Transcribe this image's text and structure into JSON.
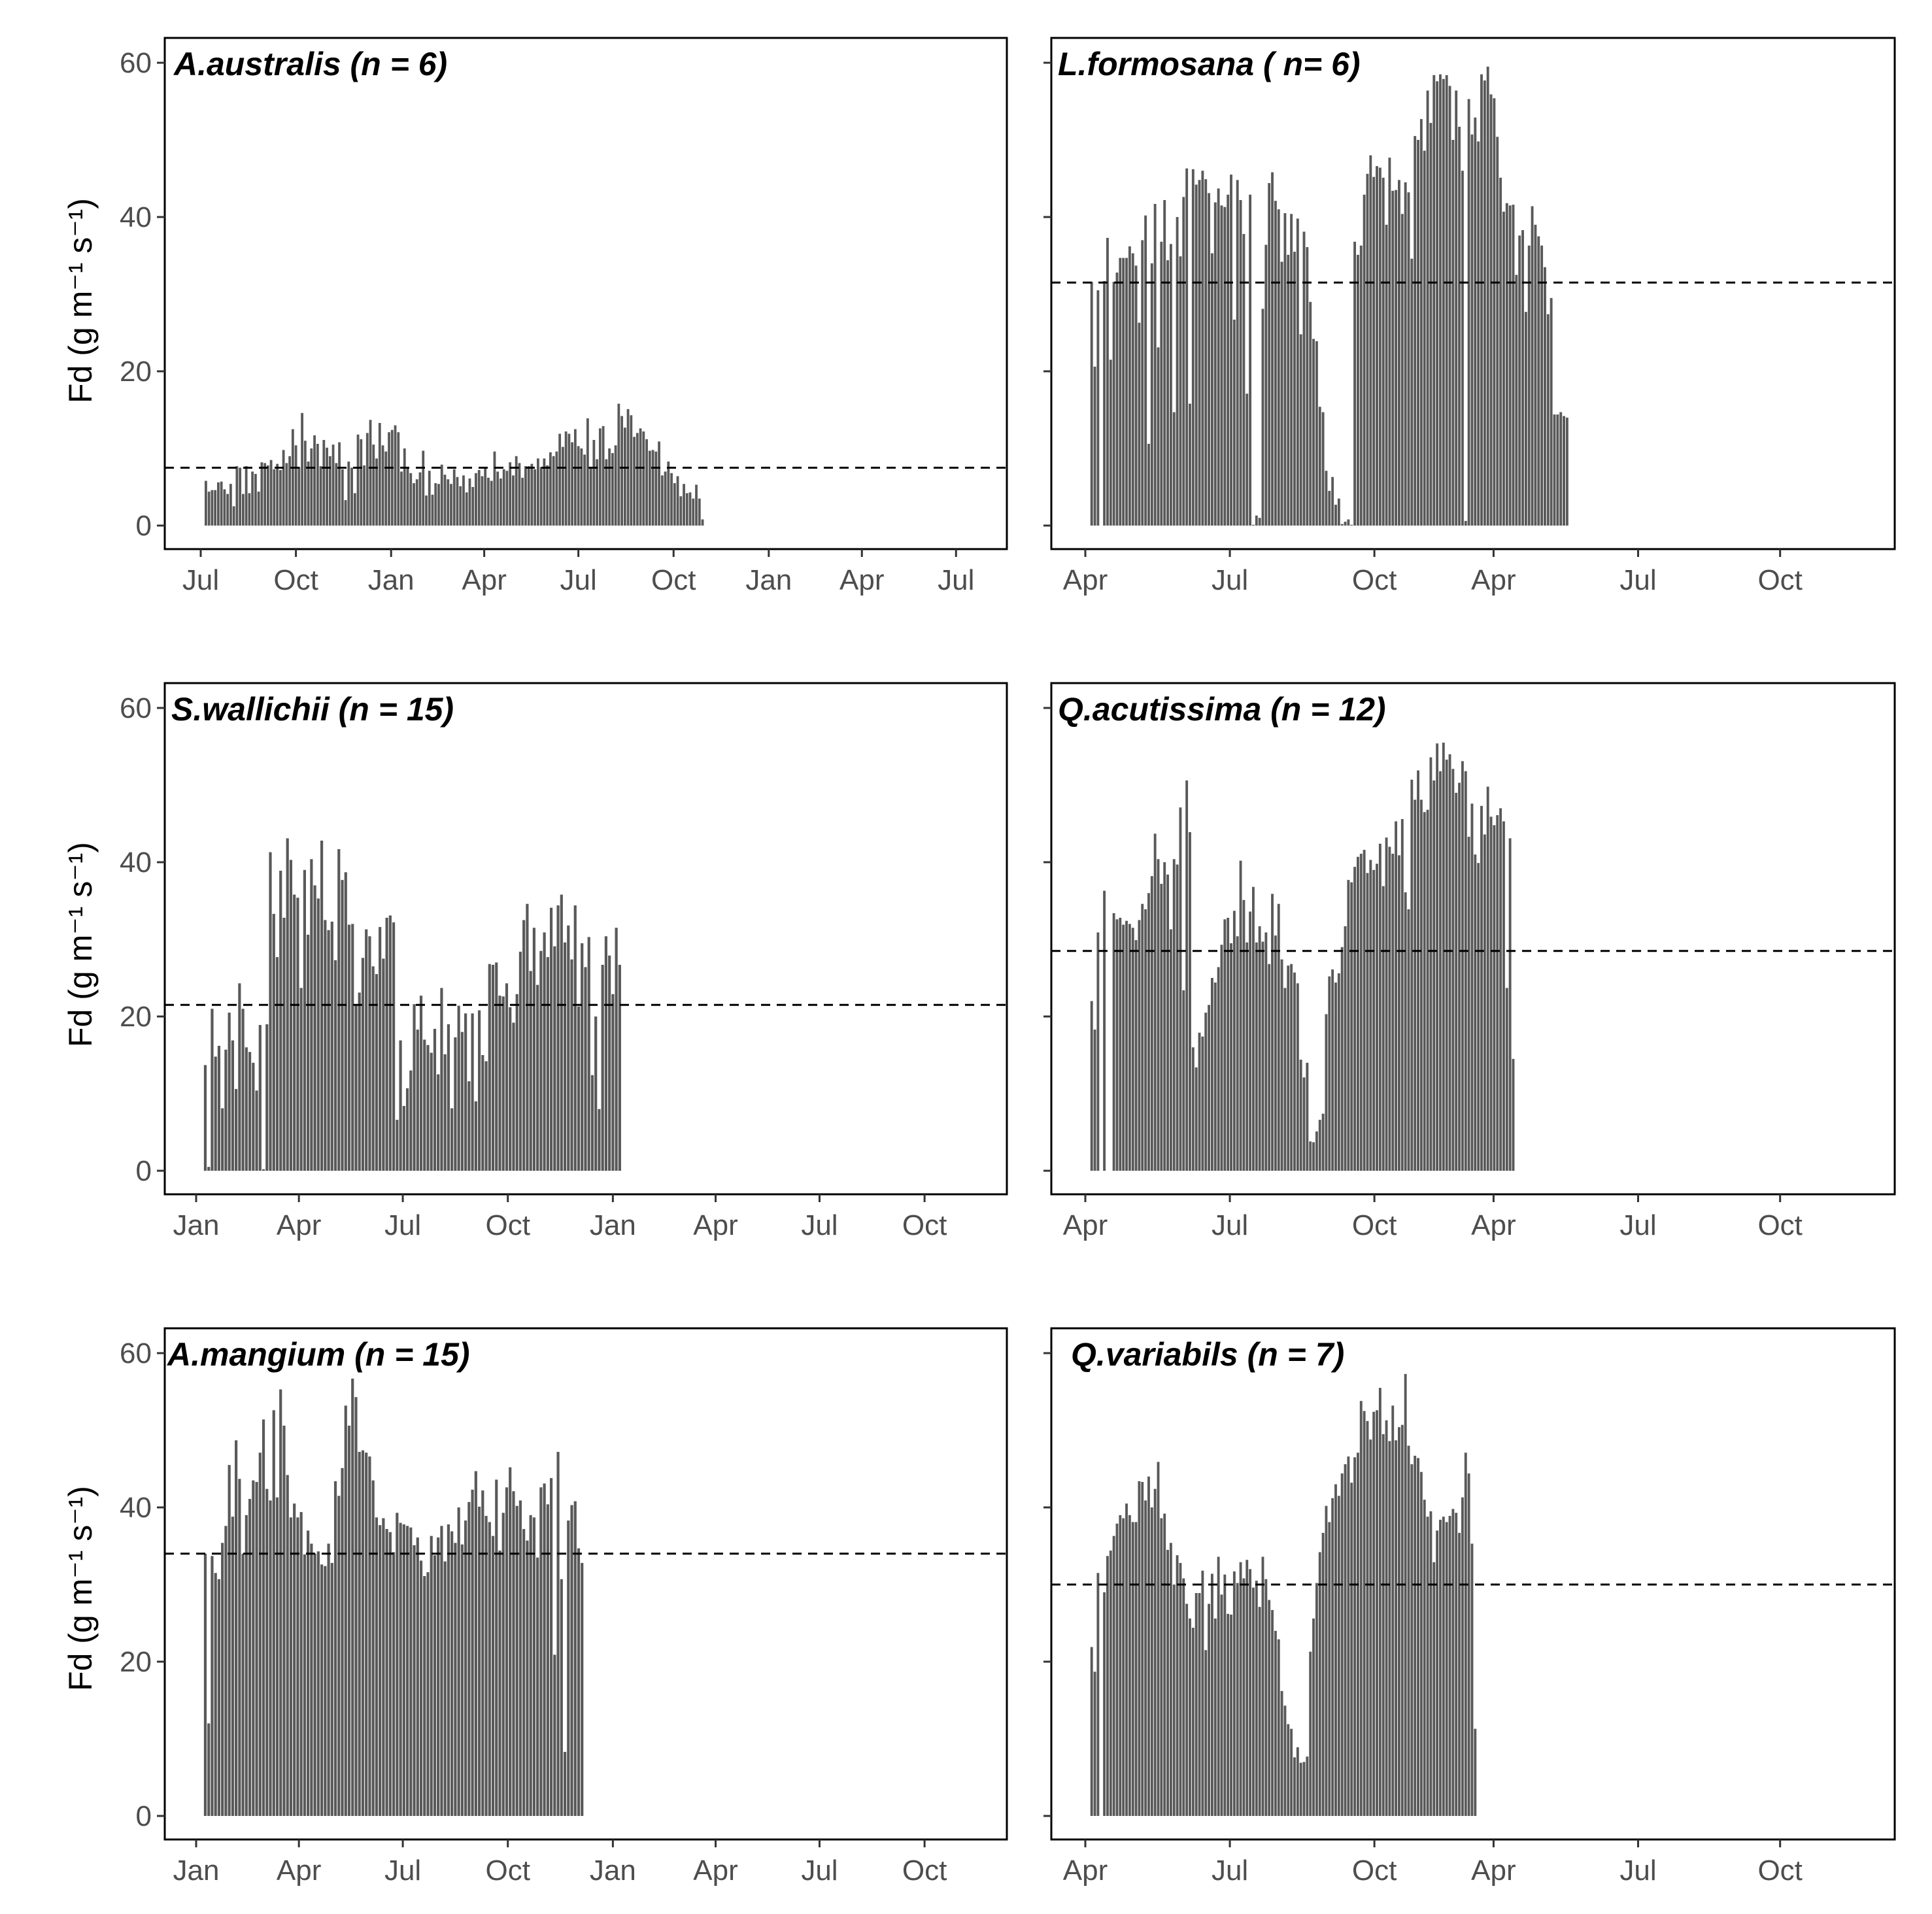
{
  "figure": {
    "y_axis_label": "Fd (g m⁻¹ s⁻¹)",
    "bar_color": "#595959"
  },
  "chart_data": [
    {
      "type": "bar",
      "title": "A.australis (n = 6)",
      "ylabel": "Fd (g m⁻¹ s⁻¹)",
      "xlabel": "",
      "ylim": [
        0,
        60
      ],
      "yticks": [
        0,
        20,
        40,
        60
      ],
      "show_y_tick_labels": true,
      "xlim_days": [
        0,
        745
      ],
      "x_tick_labels": [
        "Jul",
        "Oct",
        "Jan",
        "Apr",
        "Jul",
        "Oct",
        "Jan",
        "Apr",
        "Jul"
      ],
      "x_tick_days": [
        0,
        92,
        184,
        274,
        365,
        457,
        549,
        639,
        730
      ],
      "mean_line": 7.5,
      "bar_start_day": 5,
      "bar_spacing_days": 3,
      "values": [
        5.8,
        4.4,
        4.6,
        4.6,
        5.6,
        5.7,
        4.7,
        4.1,
        5.4,
        2.5,
        7.7,
        7.5,
        4.1,
        7.7,
        4.2,
        7.0,
        6.7,
        4.4,
        8.2,
        8.1,
        7.8,
        8.5,
        7.3,
        8.0,
        7.2,
        9.8,
        8.1,
        9.0,
        12.5,
        10.4,
        7.6,
        14.6,
        11.0,
        8.3,
        10.0,
        11.7,
        10.6,
        7.7,
        11.1,
        10.1,
        9.0,
        10.5,
        8.1,
        10.8,
        7.3,
        3.3,
        8.3,
        7.5,
        4.2,
        11.8,
        11.2,
        7.8,
        12.0,
        13.7,
        10.5,
        8.7,
        13.3,
        10.4,
        9.6,
        12.1,
        12.4,
        13.0,
        12.1,
        7.0,
        10.0,
        7.5,
        6.8,
        5.5,
        6.0,
        6.9,
        9.7,
        3.9,
        7.1,
        4.0,
        5.5,
        5.4,
        7.9,
        6.6,
        6.0,
        5.4,
        7.3,
        6.3,
        5.1,
        6.5,
        4.3,
        6.1,
        5.0,
        6.8,
        7.2,
        6.4,
        7.6,
        6.2,
        5.8,
        9.6,
        7.0,
        6.1,
        7.3,
        7.1,
        8.2,
        6.5,
        9.0,
        8.1,
        6.2,
        7.7,
        7.7,
        8.0,
        7.3,
        8.7,
        7.6,
        8.7,
        7.8,
        9.5,
        9.0,
        9.6,
        11.9,
        10.2,
        12.2,
        11.9,
        10.8,
        12.5,
        10.3,
        10.0,
        9.2,
        13.9,
        7.6,
        11.1,
        8.6,
        12.6,
        12.9,
        8.6,
        10.0,
        9.4,
        10.4,
        15.8,
        14.2,
        12.7,
        15.1,
        14.3,
        11.5,
        12.0,
        12.6,
        12.2,
        11.2,
        9.7,
        9.8,
        9.6,
        10.9,
        6.5,
        7.0,
        8.3,
        6.8,
        5.5,
        6.4,
        3.8,
        5.4,
        4.2,
        4.3,
        3.5,
        5.3,
        3.5,
        0.8
      ]
    },
    {
      "type": "bar",
      "title": "L.formosana ( n= 6)",
      "ylabel": "",
      "xlabel": "",
      "ylim": [
        0,
        60
      ],
      "yticks": [
        0,
        20,
        40,
        60
      ],
      "show_y_tick_labels": false,
      "xlim_days": [
        0,
        592
      ],
      "x_tick_labels": [
        "Apr",
        "Jul",
        "Oct",
        "Apr",
        "Jul",
        "Oct"
      ],
      "x_tick_days": [
        0,
        114,
        228,
        322,
        436,
        548
      ],
      "mean_line": 31.5,
      "bar_start_day": 5,
      "bar_spacing_days": 2.5,
      "values": [
        31.6,
        20.6,
        30.5,
        0.0,
        31.7,
        37.3,
        21.5,
        31.6,
        32.8,
        34.7,
        34.7,
        34.7,
        36.2,
        35.3,
        33.7,
        26.3,
        37.0,
        40.2,
        10.6,
        34.0,
        41.7,
        23.1,
        36.8,
        42.2,
        34.4,
        36.5,
        14.7,
        40.0,
        34.9,
        42.6,
        46.3,
        15.8,
        46.2,
        44.2,
        44.8,
        46.0,
        44.9,
        43.1,
        35.3,
        41.9,
        43.7,
        41.5,
        41.3,
        42.9,
        45.5,
        26.7,
        44.8,
        42.2,
        37.8,
        17.1,
        42.9,
        0.1,
        1.3,
        1.0,
        28.1,
        36.4,
        44.4,
        45.8,
        42.1,
        41.0,
        34.2,
        40.5,
        35.1,
        40.4,
        35.5,
        39.8,
        24.8,
        38.1,
        36.1,
        29.0,
        24.2,
        23.9,
        15.4,
        14.7,
        7.1,
        4.5,
        6.3,
        2.7,
        3.5,
        0.2,
        0.5,
        0.8,
        0.1,
        36.8,
        35.1,
        36.3,
        42.9,
        45.6,
        48.0,
        45.2,
        46.6,
        46.4,
        45.1,
        39.0,
        47.7,
        43.4,
        43.5,
        44.8,
        40.4,
        44.5,
        43.2,
        34.6,
        50.5,
        50.0,
        52.7,
        48.6,
        56.4,
        52.2,
        58.4,
        57.6,
        58.5,
        57.9,
        58.4,
        57.0,
        50.0,
        56.4,
        51.7,
        46.0,
        0.6,
        55.3,
        50.7,
        52.9,
        49.8,
        58.5,
        57.7,
        59.5,
        55.9,
        55.4,
        50.4,
        45.1,
        40.7,
        41.8,
        41.5,
        41.6,
        32.5,
        37.6,
        38.3,
        27.7,
        36.3,
        41.4,
        39.0,
        37.5,
        36.3,
        33.5,
        27.4,
        29.5,
        14.4,
        14.4,
        14.7,
        14.2,
        14.0
      ]
    },
    {
      "type": "bar",
      "title": "S.wallichii (n = 15)",
      "ylabel": "Fd (g m⁻¹ s⁻¹)",
      "xlabel": "",
      "ylim": [
        0,
        60
      ],
      "yticks": [
        0,
        20,
        40,
        60
      ],
      "show_y_tick_labels": true,
      "xlim_days": [
        0,
        670
      ],
      "x_tick_labels": [
        "Jan",
        "Apr",
        "Jul",
        "Oct",
        "Jan",
        "Apr",
        "Jul",
        "Oct"
      ],
      "x_tick_days": [
        0,
        90,
        181,
        273,
        365,
        455,
        546,
        638
      ],
      "mean_line": 21.5,
      "bar_start_day": 8,
      "bar_spacing_days": 3,
      "values": [
        13.7,
        0.5,
        21.0,
        14.8,
        16.2,
        8.1,
        15.7,
        20.5,
        16.9,
        10.6,
        24.3,
        21.0,
        16.0,
        15.4,
        14.0,
        10.4,
        18.9,
        0.2,
        19.0,
        41.3,
        33.3,
        27.7,
        38.9,
        32.8,
        43.1,
        40.3,
        35.8,
        35.4,
        23.7,
        39.0,
        30.6,
        40.4,
        37.0,
        35.3,
        42.8,
        32.5,
        31.2,
        32.3,
        27.3,
        41.7,
        37.7,
        38.7,
        31.9,
        32.0,
        21.6,
        23.1,
        27.6,
        31.3,
        30.4,
        26.5,
        25.5,
        31.6,
        27.5,
        32.8,
        33.1,
        32.2,
        6.6,
        16.9,
        8.4,
        10.7,
        13.0,
        21.6,
        18.3,
        22.7,
        17.0,
        16.3,
        15.3,
        18.4,
        12.5,
        23.7,
        15.1,
        19.0,
        8.1,
        17.3,
        21.4,
        18.0,
        20.4,
        11.6,
        20.4,
        9.0,
        20.8,
        15.0,
        14.2,
        26.8,
        26.7,
        27.0,
        22.7,
        22.6,
        24.3,
        21.2,
        19.2,
        22.9,
        28.4,
        32.5,
        34.6,
        25.9,
        31.5,
        24.1,
        28.5,
        30.9,
        27.7,
        34.1,
        29.1,
        34.4,
        35.8,
        29.6,
        31.8,
        27.4,
        34.4,
        21.3,
        29.5,
        26.4,
        30.3,
        12.4,
        20.0,
        8.0,
        26.7,
        30.4,
        27.9,
        22.9,
        31.5,
        26.7
      ]
    },
    {
      "type": "bar",
      "title": "Q.acutissima (n = 12)",
      "ylabel": "",
      "xlabel": "",
      "ylim": [
        0,
        60
      ],
      "yticks": [
        0,
        20,
        40,
        60
      ],
      "show_y_tick_labels": false,
      "xlim_days": [
        0,
        592
      ],
      "x_tick_labels": [
        "Apr",
        "Jul",
        "Oct",
        "Apr",
        "Jul",
        "Oct"
      ],
      "x_tick_days": [
        0,
        114,
        228,
        322,
        436,
        548
      ],
      "mean_line": 28.5,
      "bar_start_day": 5,
      "bar_spacing_days": 2.5,
      "values": [
        22.0,
        18.3,
        30.9,
        0.0,
        36.3,
        0.0,
        0.0,
        33.4,
        32.6,
        32.8,
        31.9,
        32.4,
        32.0,
        31.5,
        29.9,
        32.5,
        34.6,
        33.9,
        36.0,
        38.2,
        43.7,
        40.4,
        37.2,
        40.0,
        38.4,
        31.3,
        40.4,
        39.7,
        47.1,
        23.4,
        50.6,
        43.9,
        16.0,
        13.4,
        17.9,
        17.4,
        20.5,
        21.5,
        25.0,
        24.4,
        26.4,
        29.3,
        32.6,
        32.8,
        29.5,
        33.7,
        30.4,
        40.2,
        35.1,
        29.6,
        33.6,
        36.8,
        29.6,
        31.7,
        29.7,
        30.9,
        26.8,
        35.9,
        30.5,
        34.6,
        27.4,
        23.7,
        26.6,
        26.8,
        25.7,
        24.3,
        14.4,
        12.1,
        14.0,
        3.8,
        3.7,
        5.1,
        6.6,
        7.4,
        20.3,
        25.2,
        26.1,
        24.4,
        25.6,
        29.0,
        31.7,
        37.7,
        37.4,
        39.4,
        40.7,
        41.1,
        41.6,
        38.6,
        40.3,
        39.0,
        39.8,
        42.4,
        36.9,
        43.2,
        42.0,
        41.1,
        45.3,
        40.9,
        45.6,
        36.1,
        33.9,
        50.7,
        48.1,
        51.9,
        48.1,
        46.5,
        46.8,
        53.6,
        50.6,
        55.4,
        51.8,
        55.5,
        53.3,
        54.0,
        52.1,
        49.0,
        50.3,
        53.1,
        51.8,
        43.3,
        47.6,
        41.0,
        39.9,
        47.3,
        43.6,
        49.8,
        45.9,
        44.8,
        46.1,
        47.0,
        45.3,
        23.7,
        43.1,
        14.5
      ]
    },
    {
      "type": "bar",
      "title": "A.mangium (n = 15)",
      "ylabel": "Fd (g m⁻¹ s⁻¹)",
      "xlabel": "",
      "ylim": [
        0,
        60
      ],
      "yticks": [
        0,
        20,
        40,
        60
      ],
      "show_y_tick_labels": true,
      "xlim_days": [
        0,
        670
      ],
      "x_tick_labels": [
        "Jan",
        "Apr",
        "Jul",
        "Oct",
        "Jan",
        "Apr",
        "Jul",
        "Oct"
      ],
      "x_tick_days": [
        0,
        90,
        181,
        273,
        365,
        455,
        546,
        638
      ],
      "mean_line": 34.0,
      "bar_start_day": 8,
      "bar_spacing_days": 3,
      "values": [
        34.0,
        12.0,
        33.7,
        31.5,
        30.7,
        35.4,
        37.6,
        45.5,
        38.8,
        48.7,
        43.7,
        34.0,
        39.0,
        41.1,
        43.5,
        43.3,
        47.1,
        51.4,
        42.4,
        40.9,
        52.6,
        41.3,
        55.3,
        50.6,
        44.2,
        38.7,
        40.5,
        38.7,
        39.4,
        33.9,
        37.0,
        35.3,
        34.0,
        34.3,
        32.6,
        32.4,
        35.3,
        32.8,
        43.4,
        41.5,
        45.1,
        53.2,
        50.6,
        56.7,
        54.3,
        47.2,
        47.4,
        47.1,
        46.6,
        43.5,
        38.7,
        37.7,
        38.6,
        37.2,
        36.8,
        34.2,
        39.3,
        38.0,
        37.8,
        37.6,
        37.4,
        35.1,
        36.1,
        33.1,
        31.1,
        31.6,
        36.3,
        33.8,
        36.1,
        37.6,
        33.0,
        37.8,
        36.9,
        35.4,
        40.0,
        35.2,
        38.3,
        40.7,
        42.3,
        44.7,
        40.1,
        42.2,
        38.9,
        38.1,
        36.3,
        43.6,
        34.4,
        39.3,
        42.6,
        45.2,
        42.1,
        40.2,
        40.9,
        37.2,
        35.7,
        39.0,
        38.7,
        33.5,
        42.6,
        43.1,
        40.4,
        43.8,
        20.9,
        47.2,
        30.7,
        8.3,
        38.3,
        40.3,
        40.8,
        34.7,
        32.8
      ]
    },
    {
      "type": "bar",
      "title": "Q.variabils (n = 7)",
      "ylabel": "",
      "xlabel": "",
      "ylim": [
        0,
        60
      ],
      "yticks": [
        0,
        20,
        40,
        60
      ],
      "show_y_tick_labels": false,
      "xlim_days": [
        0,
        592
      ],
      "x_tick_labels": [
        "Apr",
        "Jul",
        "Oct",
        "Apr",
        "Jul",
        "Oct"
      ],
      "x_tick_days": [
        0,
        114,
        228,
        322,
        436,
        548
      ],
      "mean_line": 30.0,
      "bar_start_day": 5,
      "bar_spacing_days": 2.5,
      "values": [
        21.9,
        18.7,
        31.5,
        0.0,
        29.0,
        33.7,
        34.4,
        36.3,
        37.9,
        39.0,
        38.6,
        40.5,
        39.0,
        38.1,
        38.1,
        43.4,
        43.3,
        40.9,
        44.0,
        40.0,
        42.4,
        45.9,
        38.6,
        39.2,
        34.5,
        35.4,
        30.0,
        33.8,
        32.8,
        30.8,
        27.5,
        25.6,
        24.4,
        28.9,
        28.9,
        31.8,
        21.5,
        27.5,
        31.4,
        25.6,
        33.6,
        28.7,
        31.3,
        26.2,
        26.1,
        31.7,
        30.2,
        32.9,
        30.8,
        33.2,
        32.0,
        29.6,
        30.5,
        27.1,
        33.6,
        30.7,
        28.0,
        26.7,
        24.0,
        22.9,
        16.2,
        14.3,
        11.9,
        11.3,
        7.6,
        8.9,
        6.9,
        7.0,
        7.7,
        21.3,
        25.6,
        30.2,
        34.2,
        36.7,
        40.2,
        38.1,
        41.2,
        43.0,
        41.5,
        44.4,
        45.6,
        46.6,
        43.2,
        46.5,
        47.1,
        53.8,
        52.5,
        51.2,
        48.8,
        52.4,
        52.6,
        55.5,
        49.5,
        51.3,
        48.6,
        53.2,
        48.7,
        50.4,
        50.7,
        57.3,
        48.0,
        45.6,
        46.7,
        46.4,
        44.6,
        41.0,
        38.8,
        39.5,
        32.9,
        37.0,
        38.4,
        38.8,
        38.1,
        38.9,
        39.8,
        39.3,
        36.7,
        41.3,
        47.1,
        44.4,
        35.3,
        11.3
      ]
    }
  ]
}
